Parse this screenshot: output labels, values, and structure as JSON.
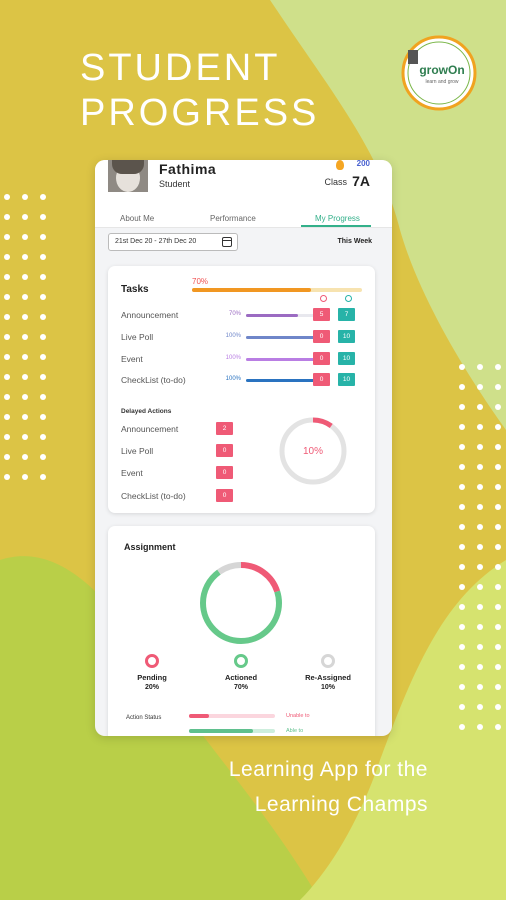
{
  "hero": {
    "line1": "STUDENT",
    "line2": "PROGRESS"
  },
  "tagline": {
    "line1": "Learning App for the",
    "line2": "Learning Champs"
  },
  "logo": {
    "text": "growOn",
    "subtext": "learn and grow"
  },
  "profile": {
    "name": "Fathima",
    "role": "Student",
    "points": "200",
    "class_label": "Class",
    "class_value": "7A"
  },
  "tabs": [
    {
      "label": "About Me"
    },
    {
      "label": "Performance"
    },
    {
      "label": "My Progress"
    }
  ],
  "date_range": "21st Dec 20 - 27th Dec 20",
  "period": "This Week",
  "tasks": {
    "title": "Tasks",
    "overall_pct": "70%",
    "overall_value": 0.7,
    "rows": [
      {
        "label": "Announcement",
        "pct": "70%",
        "value": 0.7,
        "color": "#9b6bc2",
        "pending": "5",
        "done": "7"
      },
      {
        "label": "Live Poll",
        "pct": "100%",
        "value": 1.0,
        "color": "#6f86c9",
        "pending": "0",
        "done": "10"
      },
      {
        "label": "Event",
        "pct": "100%",
        "value": 1.0,
        "color": "#b97ee3",
        "pending": "0",
        "done": "10"
      },
      {
        "label": "CheckList (to-do)",
        "pct": "100%",
        "value": 1.0,
        "color": "#2a73c0",
        "pending": "0",
        "done": "10"
      }
    ]
  },
  "delayed": {
    "title": "Delayed Actions",
    "rows": [
      {
        "label": "Announcement",
        "count": "2"
      },
      {
        "label": "Live Poll",
        "count": "0"
      },
      {
        "label": "Event",
        "count": "0"
      },
      {
        "label": "CheckList (to-do)",
        "count": "0"
      }
    ],
    "donut_pct": "10%",
    "donut_value": 0.1
  },
  "assignment": {
    "title": "Assignment",
    "pending": {
      "label": "Pending",
      "pct": "20%",
      "value": 0.2,
      "color": "#ef5a76"
    },
    "actioned": {
      "label": "Actioned",
      "pct": "70%",
      "value": 0.7,
      "color": "#66c98a"
    },
    "reassigned": {
      "label": "Re-Assigned",
      "pct": "10%",
      "value": 0.1,
      "color": "#d6d6d6"
    },
    "action_status_label": "Action Status",
    "status_rows": [
      {
        "label": "Unable to",
        "color": "#ef5a76"
      },
      {
        "label": "Able to",
        "color": "#5fc08e"
      }
    ]
  }
}
